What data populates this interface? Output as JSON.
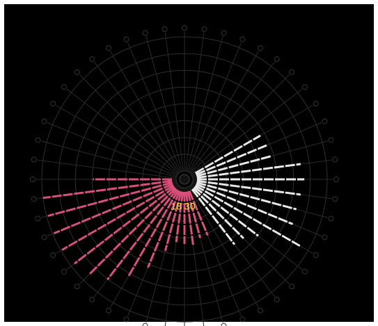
{
  "chart_data": {
    "type": "radial-bar",
    "label": "18 30",
    "label_color": "#f2e33a",
    "ylim": [
      0,
      100
    ],
    "yticks": [
      0,
      12.5,
      25,
      37.5,
      50,
      62.5,
      75,
      87.5,
      100
    ],
    "grid": true,
    "series": [
      {
        "color": "#e8e8e8",
        "x": [
          -30,
          -22.5,
          -15,
          -7.5,
          0,
          7.5,
          15,
          22.5,
          30,
          37.5,
          45,
          52.5
        ],
        "values": [
          59,
          60,
          61,
          81,
          83,
          81,
          80,
          81,
          93,
          63,
          56,
          55
        ]
      },
      {
        "color": "#d9507a",
        "x": [
          67.5,
          75,
          82.5,
          90,
          97.5,
          105,
          112.5,
          120,
          127.5,
          135,
          142.5,
          150,
          157.5,
          165,
          172.5,
          180
        ],
        "values": [
          39,
          39,
          43,
          42,
          41,
          49,
          65,
          77,
          88,
          94,
          97,
          99,
          99,
          99,
          100,
          62
        ]
      }
    ]
  }
}
